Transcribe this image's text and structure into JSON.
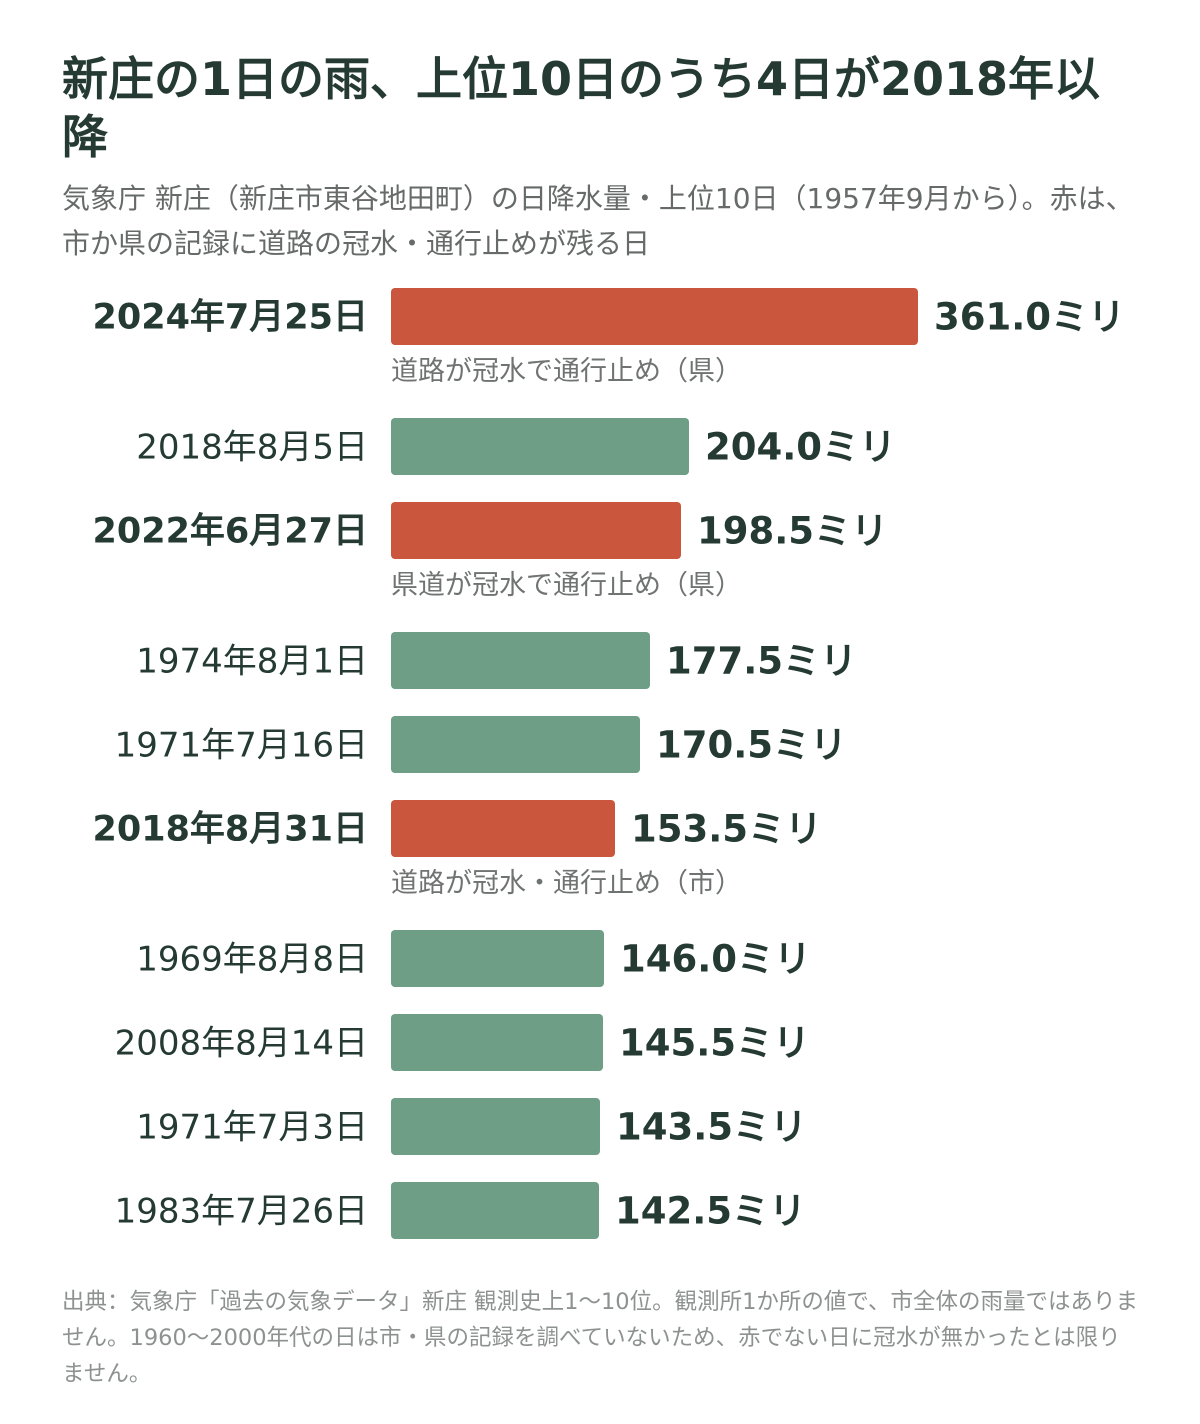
{
  "title": "新庄の1日の雨、上位10日のうち4日が2018年以降",
  "subtitle": "気象庁 新庄（新庄市東谷地田町）の日降水量・上位10日（1957年9月から）。赤は、市か県の記録に道路の冠水・通行止めが残る日",
  "source": "出典：気象庁「過去の気象データ」新庄 観測史上1〜10位。観測所1か所の値で、市全体の雨量ではありません。1960〜2000年代の日は市・県の記録を調べていないため、赤でない日に冠水が無かったとは限りません。",
  "colors": {
    "flooded": "#c9563d",
    "other": "#6e9e86",
    "text": "#243a33"
  },
  "chart_data": {
    "type": "bar",
    "orientation": "horizontal",
    "unit": "ミリ",
    "categories": [
      "2024年7月25日",
      "2018年8月5日",
      "2022年6月27日",
      "1974年8月1日",
      "1971年7月16日",
      "2018年8月31日",
      "1969年8月8日",
      "2008年8月14日",
      "1971年7月3日",
      "1983年7月26日"
    ],
    "values": [
      361.0,
      204.0,
      198.5,
      177.5,
      170.5,
      153.5,
      146.0,
      145.5,
      143.5,
      142.5
    ],
    "value_labels": [
      "361.0ミリ",
      "204.0ミリ",
      "198.5ミリ",
      "177.5ミリ",
      "170.5ミリ",
      "153.5ミリ",
      "146.0ミリ",
      "145.5ミリ",
      "143.5ミリ",
      "142.5ミリ"
    ],
    "flooded": [
      true,
      false,
      true,
      false,
      false,
      true,
      false,
      false,
      false,
      false
    ],
    "notes": [
      "道路が冠水で通行止め（県）",
      "",
      "県道が冠水で通行止め（県）",
      "",
      "",
      "道路が冠水・通行止め（市）",
      "",
      "",
      "",
      ""
    ],
    "xlim": [
      0,
      361.0
    ],
    "grid": false,
    "legend": "none"
  }
}
